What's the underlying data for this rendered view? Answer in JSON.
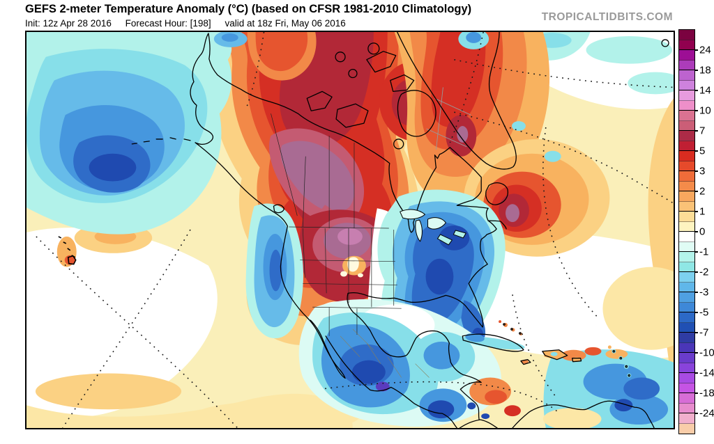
{
  "header": {
    "title": "GEFS 2-meter Temperature Anomaly (°C) (based on CFSR 1981-2010 Climatology)",
    "init": "Init: 12z Apr 28 2016",
    "forecast_hour": "Forecast Hour: [198]",
    "valid": "valid at 18z Fri, May 06 2016",
    "watermark": "TROPICALTIDBITS.COM"
  },
  "colorbar": {
    "labels": [
      "24",
      "18",
      "14",
      "10",
      "7",
      "5",
      "3",
      "2",
      "1",
      "0",
      "-1",
      "-2",
      "-3",
      "-5",
      "-7",
      "-10",
      "-14",
      "-18",
      "-24"
    ],
    "cells": [
      "#7B0240",
      "#91014F",
      "#9D0E95",
      "#AC3CBA",
      "#BD63CF",
      "#CE82DD",
      "#E79BDE",
      "#EE8FC9",
      "#DB7291",
      "#CB5E77",
      "#AC2B47",
      "#C01F33",
      "#D92C20",
      "#E64A2B",
      "#EF6C39",
      "#F48B4A",
      "#F8A75E",
      "#FAC277",
      "#FCDD97",
      "#FEF4C0",
      "#FFFFFF",
      "#E0FCF5",
      "#B4F4EB",
      "#8FE7E5",
      "#7DD1F0",
      "#60B7EA",
      "#4FA0E2",
      "#3E88D8",
      "#2C69C7",
      "#2050B4",
      "#2F3CA4",
      "#4A36B8",
      "#6A3CCB",
      "#8943DB",
      "#A84BE3",
      "#C554E4",
      "#D76DD6",
      "#E78CCD",
      "#F1AFCC",
      "#F9CDA9"
    ]
  },
  "map": {
    "palette": {
      "base": "#FAEFB9",
      "white": "#FFFFFF",
      "y1": "#FCE7A6",
      "o1": "#FBD183",
      "o2": "#F8B25F",
      "o3": "#F28948",
      "r1": "#E6552F",
      "r2": "#D52F24",
      "r3": "#B22837",
      "rose": "#C45B72",
      "mauve": "#A96B93",
      "pink": "#C77FB0",
      "hot": "#FFFADF",
      "c0": "#DCFBF4",
      "c1": "#B2F2EA",
      "c2": "#87DFE9",
      "c3": "#66BBE9",
      "c4": "#4697DE",
      "c5": "#2F6CC8",
      "c6": "#1F4AB0",
      "v1": "#5A3CBE",
      "coast": "#000000",
      "grat": "#1A1A1A",
      "graygrid": "#999999",
      "stateline": "#222222",
      "mexline": "#8A7F5A"
    }
  }
}
